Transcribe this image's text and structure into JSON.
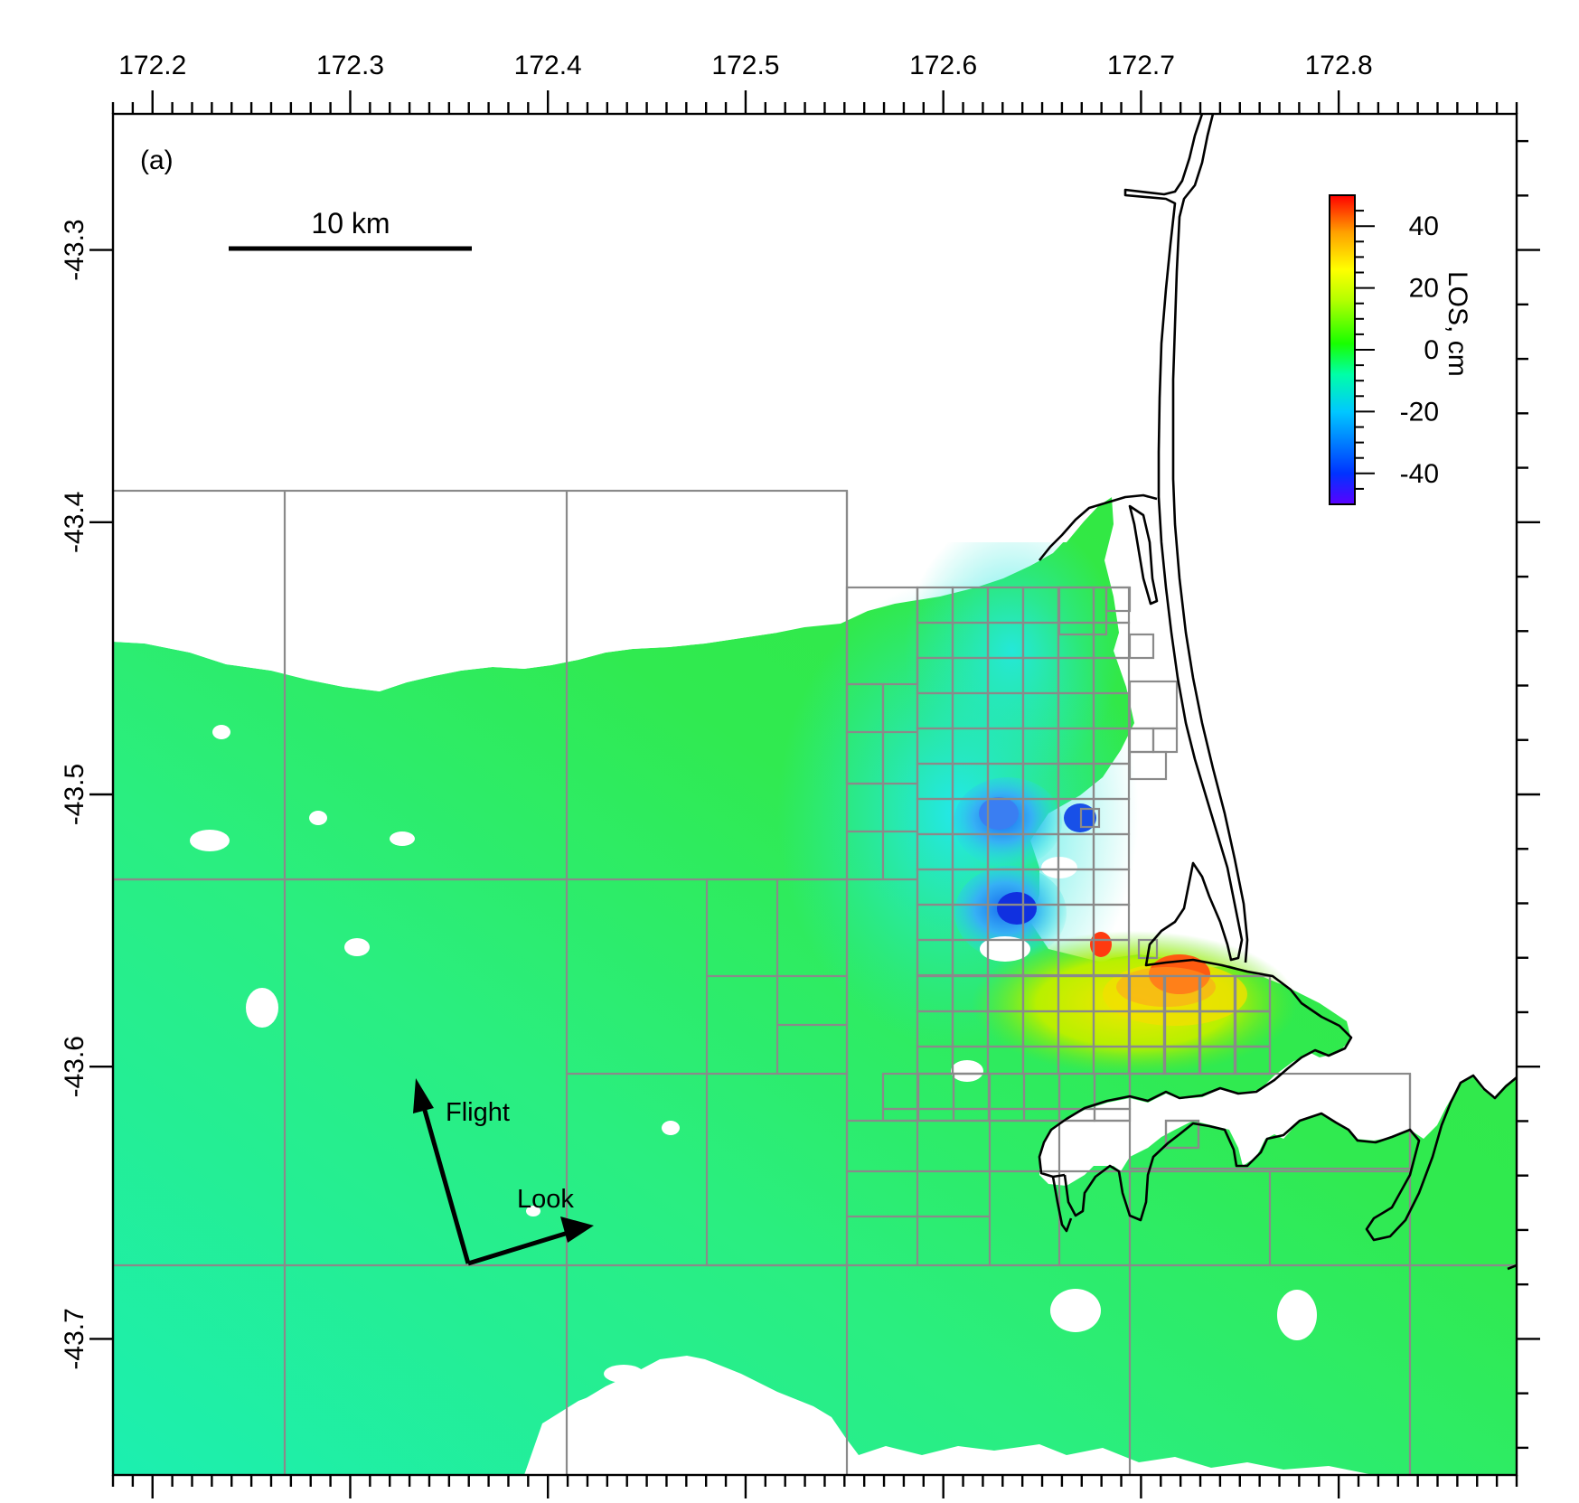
{
  "panel_label": "(a)",
  "scale_bar": {
    "label": "10 km"
  },
  "x_axis": {
    "ticks": [
      "172.2",
      "172.3",
      "172.4",
      "172.5",
      "172.6",
      "172.7",
      "172.8"
    ],
    "range": [
      172.18,
      172.89
    ]
  },
  "y_axis": {
    "ticks": [
      "-43.3",
      "-43.4",
      "-43.5",
      "-43.6",
      "-43.7"
    ],
    "range": [
      -43.75,
      -43.25
    ]
  },
  "colorbar": {
    "title": "LOS, cm",
    "ticks": [
      "40",
      "20",
      "0",
      "-20",
      "-40"
    ],
    "range": [
      -50,
      50
    ],
    "colormap": [
      "#5a00ff",
      "#0033ff",
      "#00c8ff",
      "#00ffa8",
      "#18ff00",
      "#b4ff00",
      "#ffff00",
      "#ffa000",
      "#ff0000"
    ]
  },
  "arrows": {
    "flight": "Flight",
    "look": "Look"
  },
  "colors": {
    "coast": "#000000",
    "grid": "#8a8a8a",
    "land_far": "#28ee72",
    "land_east": "#30e63a",
    "subsidence": "#2aa0f0",
    "uplift": "#ff5a10"
  }
}
